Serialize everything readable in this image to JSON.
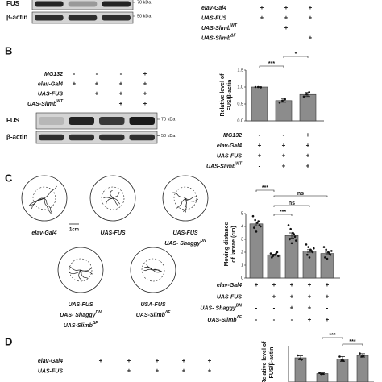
{
  "panels": {
    "A": {
      "blot": [
        {
          "label": "FUS",
          "marker": "70 kDa"
        },
        {
          "label": "β-actin",
          "marker": "50 kDa"
        }
      ],
      "conditions": [
        {
          "label": "elav-Gal4",
          "marks": [
            "+",
            "+",
            "+"
          ]
        },
        {
          "label": "UAS-FUS",
          "marks": [
            "+",
            "+",
            "+"
          ]
        },
        {
          "label": "UAS-Slimb",
          "sup": "WT",
          "marks": [
            null,
            "+",
            null
          ]
        },
        {
          "label": "UAS-Slimb",
          "sup": "ΔF",
          "marks": [
            null,
            null,
            "+"
          ]
        }
      ]
    },
    "B": {
      "letter": "B",
      "conditions": [
        {
          "label": "MG132",
          "marks": [
            "-",
            "-",
            "-",
            "+"
          ]
        },
        {
          "label": "elav-Gal4",
          "marks": [
            "+",
            "+",
            "+",
            "+"
          ]
        },
        {
          "label": "UAS-FUS",
          "marks": [
            null,
            "+",
            "+",
            "+"
          ]
        },
        {
          "label": "UAS-Slimb",
          "sup": "WT",
          "marks": [
            null,
            null,
            "+",
            "+"
          ]
        }
      ],
      "blot": [
        {
          "label": "FUS",
          "marker": "70 kDa"
        },
        {
          "label": "β-actin",
          "marker": "50 kDa"
        }
      ]
    },
    "C": {
      "letter": "C",
      "scale_bar": "1cm",
      "images": [
        {
          "lines": [
            {
              "text": "elav-Gal4"
            }
          ]
        },
        {
          "lines": [
            {
              "text": "UAS-FUS"
            }
          ]
        },
        {
          "lines": [
            {
              "text": "UAS-FUS"
            },
            {
              "text": "UAS- Shaggy",
              "sup": "DN"
            }
          ]
        },
        {
          "lines": [
            {
              "text": "UAS-FUS"
            },
            {
              "text": "UAS- Shaggy",
              "sup": "DN"
            },
            {
              "text": "UAS-Slimb",
              "sup": "ΔF"
            }
          ]
        },
        {
          "lines": [
            {
              "text": "USA-FUS"
            },
            {
              "text": "UAS-Slimb",
              "sup": "ΔF"
            }
          ]
        }
      ]
    },
    "D": {
      "letter": "D",
      "conditions": [
        {
          "label": "elav-Gal4",
          "marks": [
            "+",
            "+",
            "+",
            "+",
            "+"
          ]
        },
        {
          "label": "UAS-FUS",
          "marks": [
            null,
            "+",
            "+",
            "+",
            "+"
          ]
        }
      ]
    }
  },
  "chart_data": [
    {
      "type": "bar",
      "y_label": [
        "Relative level of",
        "FUS/β-actin"
      ],
      "color": "#8c8c8c",
      "values": [
        1.0,
        0.6,
        0.78
      ],
      "errors": [
        0.01,
        0.05,
        0.06
      ],
      "points": [
        [
          1.0,
          1.0,
          0.99
        ],
        [
          0.54,
          0.6,
          0.64
        ],
        [
          0.72,
          0.78,
          0.85
        ]
      ],
      "ylim": [
        0,
        1.5
      ],
      "yticks": [
        {
          "value": 0,
          "label": "0.0"
        },
        {
          "value": 0.5,
          "label": "0.5"
        },
        {
          "value": 1,
          "label": "1.0"
        },
        {
          "value": 1.5,
          "label": "1.5"
        }
      ],
      "significance": [
        {
          "label": "***",
          "between": [
            0,
            1
          ]
        },
        {
          "label": "*",
          "between": [
            1,
            2
          ]
        }
      ],
      "conditions": [
        {
          "label": "MG132",
          "marks": [
            "-",
            "-",
            "+"
          ]
        },
        {
          "label": "elav-Gal4",
          "marks": [
            "+",
            "+",
            "+"
          ]
        },
        {
          "label": "UAS-FUS",
          "marks": [
            "+",
            "+",
            "+"
          ]
        },
        {
          "label": "UAS-Slimb",
          "sup": "WT",
          "marks": [
            "-",
            "+",
            "+"
          ]
        }
      ]
    },
    {
      "type": "bar",
      "y_label": [
        "Moving distance",
        "of larvae (cm)"
      ],
      "color": "#8c8c8c",
      "values": [
        4.2,
        1.8,
        3.3,
        2.1,
        1.9
      ],
      "errors": [
        0.15,
        0.05,
        0.2,
        0.1,
        0.1
      ],
      "points": [
        [
          4.8,
          4.5,
          4.3,
          4.1,
          3.9,
          3.6,
          4.4,
          4.0
        ],
        [
          1.9,
          1.7,
          1.8,
          2.0,
          1.6,
          1.8,
          1.9,
          1.7
        ],
        [
          4.1,
          3.8,
          3.5,
          3.2,
          3.0,
          2.7,
          3.4,
          2.9
        ],
        [
          2.6,
          2.4,
          2.2,
          2.0,
          1.8,
          1.6,
          2.1,
          2.3
        ],
        [
          2.4,
          2.2,
          2.0,
          1.8,
          1.6,
          1.5,
          1.9,
          2.1
        ]
      ],
      "ylim": [
        0,
        5
      ],
      "yticks": [
        0,
        1,
        2,
        3,
        4,
        5
      ],
      "significance": [
        {
          "label": "***",
          "between": [
            0,
            1
          ]
        },
        {
          "label": "ns",
          "between": [
            1,
            4
          ]
        },
        {
          "label": "ns",
          "between": [
            1,
            3
          ]
        },
        {
          "label": "***",
          "between": [
            1,
            2
          ]
        }
      ],
      "conditions": [
        {
          "label": "elav-Gal4",
          "marks": [
            "+",
            "+",
            "+",
            "+",
            "+"
          ]
        },
        {
          "label": "UAS-FUS",
          "marks": [
            "-",
            "+",
            "+",
            "+",
            "+"
          ]
        },
        {
          "label": "UAS- Shaggy",
          "sup": "DN",
          "marks": [
            "-",
            "-",
            "+",
            "+",
            "-"
          ]
        },
        {
          "label": "UAS-Slimb",
          "sup": "ΔF",
          "marks": [
            "-",
            "-",
            "-",
            "+",
            "+"
          ]
        }
      ]
    },
    {
      "type": "bar",
      "y_label": [
        "Relative level of",
        "FUS/β-actin"
      ],
      "color": "#8c8c8c",
      "values": [
        1.0,
        0.35,
        0.95,
        1.1
      ],
      "errors": [
        0.08,
        0.03,
        0.1,
        0.07
      ],
      "points": [
        [
          1.1,
          0.95,
          0.92
        ],
        [
          0.38,
          0.33,
          0.34
        ],
        [
          1.05,
          0.9,
          0.88
        ],
        [
          1.18,
          1.05,
          1.08
        ]
      ],
      "ylim": [
        0,
        1.5
      ],
      "significance": [
        {
          "label": "***",
          "between": [
            1,
            2
          ]
        },
        {
          "label": "***",
          "between": [
            2,
            3
          ]
        }
      ]
    }
  ]
}
